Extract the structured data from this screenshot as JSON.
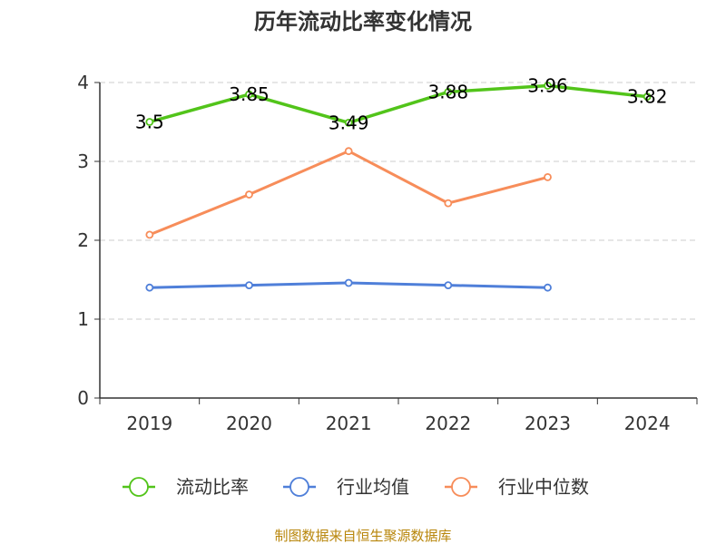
{
  "chart_data": {
    "type": "line",
    "title": "历年流动比率变化情况",
    "categories": [
      "2019",
      "2020",
      "2021",
      "2022",
      "2023",
      "2024"
    ],
    "ylim": [
      0,
      4
    ],
    "yticks": [
      "0",
      "1",
      "2",
      "3",
      "4"
    ],
    "grid": true,
    "legend_position": "bottom",
    "series": [
      {
        "name": "流动比率",
        "color": "#52c41a",
        "values": [
          3.5,
          3.85,
          3.49,
          3.88,
          3.96,
          3.82
        ],
        "labels": [
          "3.5",
          "3.85",
          "3.49",
          "3.88",
          "3.96",
          "3.82"
        ]
      },
      {
        "name": "行业均值",
        "color": "#4f7fd9",
        "values": [
          1.4,
          1.43,
          1.46,
          1.43,
          1.4,
          null
        ]
      },
      {
        "name": "行业中位数",
        "color": "#f78d5a",
        "values": [
          2.07,
          2.58,
          3.13,
          2.47,
          2.8,
          null
        ]
      }
    ],
    "source": "制图数据来自恒生聚源数据库"
  }
}
